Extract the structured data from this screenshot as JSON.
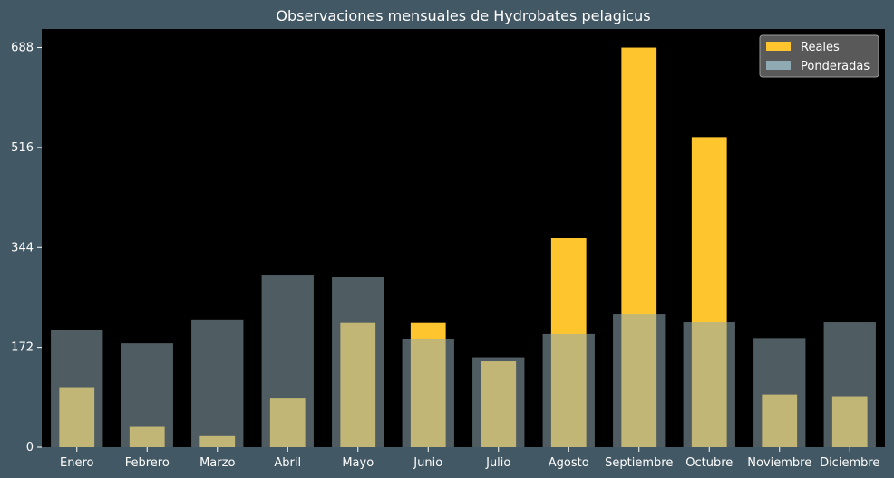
{
  "chart_data": {
    "type": "bar",
    "title": "Observaciones mensuales de Hydrobates pelagicus",
    "xlabel": "",
    "ylabel": "",
    "categories": [
      "Enero",
      "Febrero",
      "Marzo",
      "Abril",
      "Mayo",
      "Junio",
      "Julio",
      "Agosto",
      "Septiembre",
      "Octubre",
      "Noviembre",
      "Diciembre"
    ],
    "series": [
      {
        "name": "Reales",
        "values": [
          102,
          35,
          19,
          84,
          214,
          214,
          148,
          360,
          688,
          534,
          91,
          88
        ]
      },
      {
        "name": "Ponderadas",
        "values": [
          202,
          179,
          220,
          296,
          293,
          186,
          155,
          195,
          229,
          215,
          188,
          215
        ]
      }
    ],
    "ylim": [
      0,
      720
    ],
    "yticks": [
      0,
      172,
      344,
      516,
      688
    ],
    "grid": false,
    "legend_position": "top-right",
    "colors": {
      "page_background": "#435865",
      "plot_background": "#000000",
      "text": "#ffffff",
      "reales": "#FFC52E",
      "ponderadas": "#8FAAB3",
      "ponderadas_opacity": 0.55,
      "legend_background": "#595959",
      "legend_border": "#9a9a9a"
    }
  }
}
